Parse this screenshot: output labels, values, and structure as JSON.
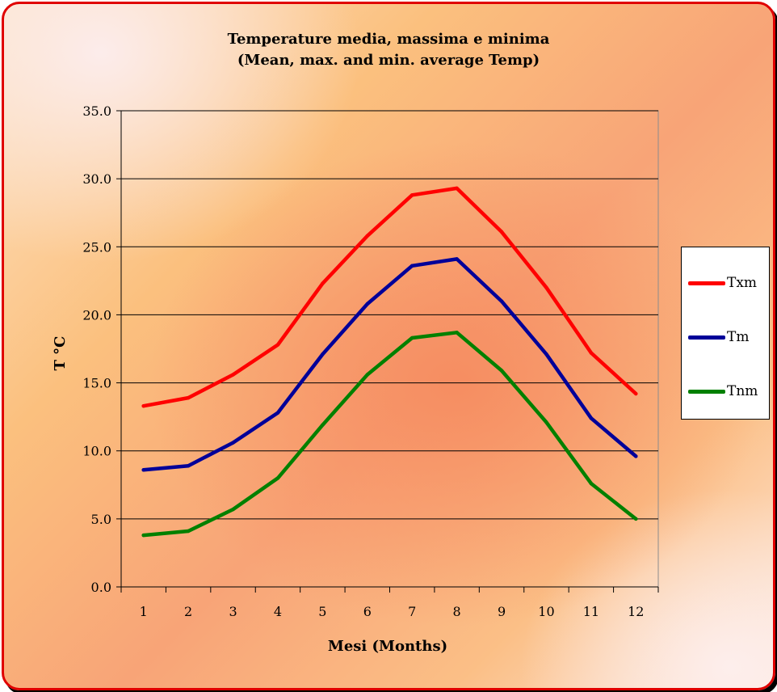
{
  "chart_data": {
    "type": "line",
    "title": "Temperature media, massima e minima",
    "subtitle": "(Mean, max. and min. average Temp)",
    "xlabel": "Mesi  (Months)",
    "ylabel": "T °C",
    "categories": [
      "1",
      "2",
      "3",
      "4",
      "5",
      "6",
      "7",
      "8",
      "9",
      "10",
      "11",
      "12"
    ],
    "ylim": [
      0,
      35
    ],
    "yticks": [
      "0.0",
      "5.0",
      "10.0",
      "15.0",
      "20.0",
      "25.0",
      "30.0",
      "35.0"
    ],
    "grid": "horizontal",
    "legend_position": "right",
    "series": [
      {
        "name": "Txm",
        "color": "#ff0000",
        "values": [
          13.3,
          13.9,
          15.6,
          17.8,
          22.3,
          25.8,
          28.8,
          29.3,
          26.1,
          22.0,
          17.2,
          14.2
        ]
      },
      {
        "name": "Tm",
        "color": "#000099",
        "values": [
          8.6,
          8.9,
          10.6,
          12.8,
          17.1,
          20.8,
          23.6,
          24.1,
          21.0,
          17.1,
          12.4,
          9.6
        ]
      },
      {
        "name": "Tnm",
        "color": "#008000",
        "values": [
          3.8,
          4.1,
          5.7,
          8.0,
          11.9,
          15.6,
          18.3,
          18.7,
          15.9,
          12.1,
          7.6,
          5.0
        ]
      }
    ]
  }
}
